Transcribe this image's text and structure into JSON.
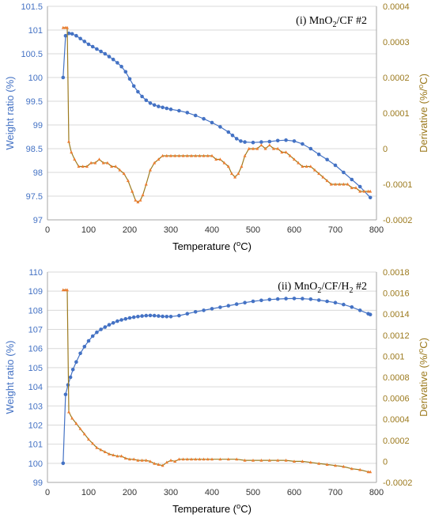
{
  "colors": {
    "weight": "#4472C4",
    "derivative": "#ED7D31",
    "right_axis": "#9C7A1E",
    "grid": "#D9D9D9"
  },
  "chart_data": [
    {
      "type": "line",
      "panel_label": "(i) MnO2/CF #2",
      "panel_label_parts": {
        "prefix": "(i) MnO",
        "sub": "2",
        "suffix": "/CF #2"
      },
      "xlabel": "Temperature (oC)",
      "xlabel_parts": {
        "prefix": "Temperature (",
        "sup": "o",
        "suffix": "C)"
      },
      "ylabel": "Weight ratio (%)",
      "y2label": "Derivative (%/oC)",
      "y2label_parts": {
        "prefix": "Derivative (%/",
        "sup": "o",
        "suffix": "C)"
      },
      "xlim": [
        0,
        800
      ],
      "xticks": [
        0,
        100,
        200,
        300,
        400,
        500,
        600,
        700,
        800
      ],
      "ylim": [
        97,
        101.5
      ],
      "yticks": [
        97,
        97.5,
        98,
        98.5,
        99,
        99.5,
        100,
        100.5,
        101,
        101.5
      ],
      "y2lim": [
        -0.0002,
        0.0004
      ],
      "y2ticks": [
        -0.0002,
        -0.0001,
        0,
        0.0001,
        0.0002,
        0.0003,
        0.0004
      ],
      "grid": "horizontal",
      "series": [
        {
          "axis": "left",
          "marker": "circle",
          "x": [
            38,
            44,
            52,
            60,
            70,
            80,
            90,
            100,
            110,
            120,
            130,
            140,
            150,
            160,
            170,
            180,
            190,
            200,
            210,
            220,
            230,
            240,
            250,
            260,
            270,
            280,
            290,
            300,
            320,
            340,
            360,
            380,
            400,
            420,
            440,
            450,
            460,
            470,
            480,
            500,
            520,
            540,
            560,
            580,
            600,
            620,
            640,
            660,
            680,
            700,
            720,
            740,
            760,
            785
          ],
          "y": [
            100.0,
            100.88,
            100.93,
            100.92,
            100.88,
            100.82,
            100.76,
            100.7,
            100.65,
            100.6,
            100.55,
            100.5,
            100.44,
            100.38,
            100.31,
            100.23,
            100.12,
            99.97,
            99.82,
            99.7,
            99.6,
            99.52,
            99.46,
            99.42,
            99.39,
            99.37,
            99.35,
            99.33,
            99.3,
            99.26,
            99.2,
            99.13,
            99.05,
            98.96,
            98.85,
            98.78,
            98.71,
            98.66,
            98.64,
            98.63,
            98.64,
            98.65,
            98.67,
            98.68,
            98.66,
            98.6,
            98.5,
            98.38,
            98.27,
            98.15,
            98.0,
            97.85,
            97.7,
            97.47
          ]
        },
        {
          "axis": "right",
          "marker": "triangle",
          "x": [
            38,
            44,
            48,
            52,
            58,
            66,
            76,
            86,
            96,
            106,
            116,
            126,
            136,
            146,
            156,
            166,
            176,
            186,
            196,
            206,
            214,
            220,
            226,
            232,
            240,
            250,
            260,
            270,
            280,
            290,
            300,
            310,
            320,
            330,
            340,
            350,
            360,
            370,
            380,
            390,
            400,
            410,
            420,
            430,
            440,
            448,
            456,
            464,
            472,
            480,
            490,
            500,
            510,
            520,
            530,
            540,
            550,
            560,
            570,
            580,
            590,
            600,
            610,
            620,
            630,
            640,
            650,
            660,
            670,
            680,
            690,
            700,
            710,
            720,
            730,
            740,
            750,
            760,
            770,
            780,
            785
          ],
          "y": [
            0.00034,
            0.00034,
            0.00034,
            2e-05,
            -1e-05,
            -3e-05,
            -5e-05,
            -5e-05,
            -5e-05,
            -4e-05,
            -4e-05,
            -3e-05,
            -4e-05,
            -4e-05,
            -5e-05,
            -5e-05,
            -6e-05,
            -7e-05,
            -9e-05,
            -0.00012,
            -0.000145,
            -0.00015,
            -0.000145,
            -0.00013,
            -0.0001,
            -6e-05,
            -4e-05,
            -3e-05,
            -2e-05,
            -2e-05,
            -2e-05,
            -2e-05,
            -2e-05,
            -2e-05,
            -2e-05,
            -2e-05,
            -2e-05,
            -2e-05,
            -2e-05,
            -2e-05,
            -2e-05,
            -3e-05,
            -3e-05,
            -4e-05,
            -5e-05,
            -7e-05,
            -8e-05,
            -7e-05,
            -5e-05,
            -2e-05,
            0.0,
            0.0,
            0.0,
            1e-05,
            0.0,
            1e-05,
            0.0,
            0.0,
            -1e-05,
            -1e-05,
            -2e-05,
            -3e-05,
            -4e-05,
            -5e-05,
            -5e-05,
            -5e-05,
            -6e-05,
            -7e-05,
            -8e-05,
            -9e-05,
            -0.0001,
            -0.0001,
            -0.0001,
            -0.0001,
            -0.0001,
            -0.00011,
            -0.00011,
            -0.00012,
            -0.00012,
            -0.00012,
            -0.00012
          ]
        }
      ]
    },
    {
      "type": "line",
      "panel_label": "(ii) MnO2/CF/H2 #2",
      "panel_label_parts": {
        "prefix": "(ii) MnO",
        "sub": "2",
        "mid": "/CF/H",
        "sub2": "2",
        "suffix": " #2"
      },
      "xlabel": "Temperature (oC)",
      "xlabel_parts": {
        "prefix": "Temperature (",
        "sup": "o",
        "suffix": "C)"
      },
      "ylabel": "Weight ratio (%)",
      "y2label": "Derivative (%/oC)",
      "y2label_parts": {
        "prefix": "Derivative (%/",
        "sup": "o",
        "suffix": "C)"
      },
      "xlim": [
        0,
        800
      ],
      "xticks": [
        0,
        100,
        200,
        300,
        400,
        500,
        600,
        700,
        800
      ],
      "ylim": [
        99,
        110
      ],
      "yticks": [
        99,
        100,
        101,
        102,
        103,
        104,
        105,
        106,
        107,
        108,
        109,
        110
      ],
      "y2lim": [
        -0.0002,
        0.0018
      ],
      "y2ticks": [
        -0.0002,
        0,
        0.0002,
        0.0004,
        0.0006,
        0.0008,
        0.001,
        0.0012,
        0.0014,
        0.0016,
        0.0018
      ],
      "grid": "horizontal",
      "series": [
        {
          "axis": "left",
          "marker": "circle",
          "x": [
            38,
            44,
            50,
            56,
            62,
            70,
            80,
            90,
            100,
            110,
            120,
            130,
            140,
            150,
            160,
            170,
            180,
            190,
            200,
            210,
            220,
            230,
            240,
            250,
            260,
            270,
            280,
            290,
            300,
            320,
            340,
            360,
            380,
            400,
            420,
            440,
            460,
            480,
            500,
            520,
            540,
            560,
            580,
            600,
            620,
            640,
            660,
            680,
            700,
            720,
            740,
            760,
            780,
            785
          ],
          "y": [
            100.0,
            103.6,
            104.1,
            104.5,
            104.9,
            105.3,
            105.75,
            106.1,
            106.4,
            106.65,
            106.85,
            107.0,
            107.12,
            107.24,
            107.34,
            107.43,
            107.5,
            107.55,
            107.6,
            107.64,
            107.67,
            107.7,
            107.72,
            107.73,
            107.72,
            107.7,
            107.68,
            107.67,
            107.67,
            107.72,
            107.82,
            107.92,
            108.0,
            108.08,
            108.16,
            108.24,
            108.32,
            108.4,
            108.47,
            108.52,
            108.56,
            108.59,
            108.61,
            108.62,
            108.61,
            108.58,
            108.53,
            108.47,
            108.4,
            108.3,
            108.17,
            108.0,
            107.82,
            107.78
          ]
        },
        {
          "axis": "right",
          "marker": "triangle",
          "x": [
            38,
            44,
            48,
            52,
            60,
            70,
            80,
            90,
            100,
            110,
            120,
            130,
            140,
            150,
            160,
            170,
            180,
            190,
            200,
            210,
            220,
            230,
            240,
            250,
            260,
            270,
            280,
            290,
            300,
            310,
            320,
            330,
            340,
            350,
            360,
            370,
            380,
            390,
            400,
            420,
            440,
            460,
            480,
            500,
            520,
            540,
            560,
            580,
            600,
            620,
            640,
            660,
            680,
            700,
            720,
            740,
            760,
            780,
            785
          ],
          "y": [
            0.00163,
            0.00163,
            0.00163,
            0.00047,
            0.00041,
            0.00036,
            0.00031,
            0.00026,
            0.00021,
            0.00017,
            0.00013,
            0.00011,
            9e-05,
            7e-05,
            6e-05,
            5e-05,
            5e-05,
            3e-05,
            2e-05,
            2e-05,
            1e-05,
            1e-05,
            1e-05,
            0.0,
            -2e-05,
            -3e-05,
            -4e-05,
            -1e-05,
            1e-05,
            0.0,
            2e-05,
            2e-05,
            2e-05,
            2e-05,
            2e-05,
            2e-05,
            2e-05,
            2e-05,
            2e-05,
            2e-05,
            2e-05,
            2e-05,
            1e-05,
            1e-05,
            1e-05,
            1e-05,
            1e-05,
            1e-05,
            0.0,
            0.0,
            -1e-05,
            -2e-05,
            -3e-05,
            -4e-05,
            -5e-05,
            -7e-05,
            -8e-05,
            -0.0001,
            -0.0001
          ]
        }
      ]
    }
  ]
}
